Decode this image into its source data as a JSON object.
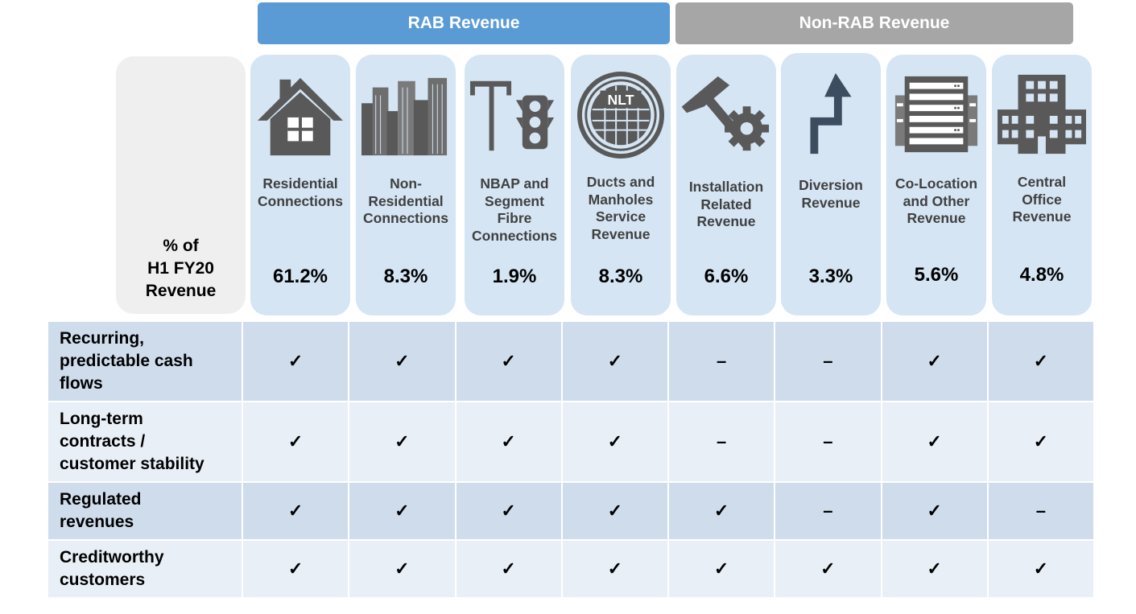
{
  "banners": {
    "rab": "RAB Revenue",
    "nonrab": "Non-RAB Revenue"
  },
  "pct_label": "% of\nH1 FY20\nRevenue",
  "columns": [
    {
      "title": "Residential\nConnections",
      "pct": "61.2%",
      "icon": "house-icon"
    },
    {
      "title": "Non-\nResidential\nConnections",
      "pct": "8.3%",
      "icon": "city-buildings-icon"
    },
    {
      "title": "NBAP and\nSegment\nFibre\nConnections",
      "pct": "1.9%",
      "icon": "streetlight-traffic-light-icon"
    },
    {
      "title": "Ducts and\nManholes\nService\nRevenue",
      "pct": "8.3%",
      "icon": "manhole-cover-icon",
      "icon_text": "NLT"
    },
    {
      "title": "Installation\nRelated\nRevenue",
      "pct": "6.6%",
      "icon": "hammer-gear-icon"
    },
    {
      "title": "Diversion\nRevenue",
      "pct": "3.3%",
      "icon": "diversion-arrow-icon"
    },
    {
      "title": "Co-Location\nand Other\nRevenue",
      "pct": "5.6%",
      "icon": "server-rack-icon"
    },
    {
      "title": "Central\nOffice\nRevenue",
      "pct": "4.8%",
      "icon": "office-building-icon"
    }
  ],
  "rows": [
    {
      "label": "Recurring,\npredictable cash\nflows",
      "values": [
        "✓",
        "✓",
        "✓",
        "✓",
        "–",
        "–",
        "✓",
        "✓"
      ]
    },
    {
      "label": "Long-term\ncontracts /\ncustomer stability",
      "values": [
        "✓",
        "✓",
        "✓",
        "✓",
        "–",
        "–",
        "✓",
        "✓"
      ]
    },
    {
      "label": "Regulated\nrevenues",
      "values": [
        "✓",
        "✓",
        "✓",
        "✓",
        "✓",
        "–",
        "✓",
        "–"
      ]
    },
    {
      "label": "Creditworthy\ncustomers",
      "values": [
        "✓",
        "✓",
        "✓",
        "✓",
        "✓",
        "✓",
        "✓",
        "✓"
      ]
    }
  ],
  "colors": {
    "rab": "#5b9bd5",
    "nonrab": "#a6a6a6",
    "card": "#d5e5f4",
    "icon": "#595959"
  }
}
